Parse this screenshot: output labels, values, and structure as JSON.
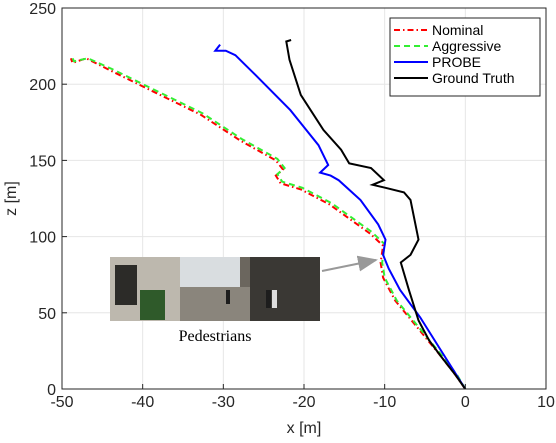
{
  "chart_data": {
    "type": "line",
    "xlabel": "x [m]",
    "ylabel": "z [m]",
    "xlim": [
      -50,
      10
    ],
    "ylim": [
      0,
      250
    ],
    "xticks": [
      -50,
      -40,
      -30,
      -20,
      -10,
      0,
      10
    ],
    "yticks": [
      0,
      50,
      100,
      150,
      200,
      250
    ],
    "grid": true,
    "legend": "upper right",
    "annotation": "Pedestrians",
    "series": [
      {
        "name": "Nominal",
        "color": "#ff0000",
        "linestyle": "dashdot",
        "x": [
          0,
          -1.2,
          -3.1,
          -6.2,
          -8.7,
          -10.2,
          -10.5,
          -10.2,
          -11.8,
          -16.8,
          -20.4,
          -22.9,
          -23.5,
          -22.6,
          -23.5,
          -27.9,
          -32.8,
          -39,
          -44,
          -47,
          -48.7,
          -48.9
        ],
        "values": [
          0,
          9,
          22,
          42,
          58,
          73,
          83,
          94,
          102,
          121,
          131,
          135,
          140,
          144,
          150,
          163,
          180,
          196,
          209,
          217,
          214,
          217
        ]
      },
      {
        "name": "Aggressive",
        "color": "#33ee33",
        "linestyle": "dashed",
        "x": [
          0,
          -1.0,
          -2.9,
          -6.0,
          -8.5,
          -10.0,
          -10.3,
          -10.0,
          -11.6,
          -16.6,
          -20.2,
          -22.7,
          -23.3,
          -22.4,
          -23.3,
          -27.7,
          -32.6,
          -38.8,
          -43.8,
          -46.8,
          -48.5,
          -48.7
        ],
        "values": [
          0,
          9,
          22,
          42,
          58,
          73,
          83,
          95,
          103,
          122,
          132,
          136,
          141,
          145,
          151,
          164,
          181,
          197,
          210,
          217,
          215,
          217
        ]
      },
      {
        "name": "PROBE",
        "color": "#0000ff",
        "linestyle": "solid",
        "x": [
          0,
          -3.1,
          -5.6,
          -8.1,
          -9.5,
          -10.2,
          -9.9,
          -10.8,
          -13,
          -15.7,
          -16.7,
          -18,
          -17,
          -18.2,
          -21.7,
          -26,
          -28.5,
          -29.7,
          -31,
          -30.4
        ],
        "values": [
          0,
          26,
          47,
          65,
          79,
          88,
          98,
          108,
          124,
          137,
          140,
          142,
          147,
          160,
          183,
          206,
          219,
          222,
          222,
          226
        ]
      },
      {
        "name": "Ground Truth",
        "color": "#000000",
        "linestyle": "solid",
        "x": [
          0,
          -1.2,
          -3.1,
          -4.5,
          -5.8,
          -7,
          -8,
          -6.8,
          -5.8,
          -6.8,
          -7.6,
          -9.9,
          -11.5,
          -10.1,
          -11.7,
          -14.4,
          -15.4,
          -17.6,
          -20.4,
          -21.8,
          -22.2,
          -21.6
        ],
        "values": [
          0,
          9,
          22,
          32,
          45,
          65,
          83,
          88,
          98,
          124,
          129,
          132,
          134,
          137,
          145,
          148,
          157,
          170,
          193,
          216,
          228,
          229
        ]
      }
    ]
  }
}
